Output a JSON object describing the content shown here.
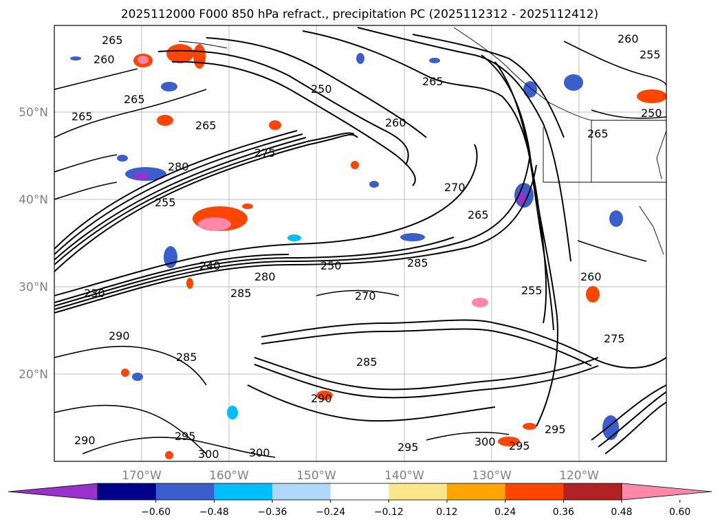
{
  "title": "2025112000 F000 850 hPa refract., precipitation PC (2025112312 - 2025112412)",
  "map": {
    "lon_labels": [
      "170°W",
      "160°W",
      "150°W",
      "140°W",
      "130°W",
      "120°W"
    ],
    "lat_labels": [
      "50°N",
      "40°N",
      "30°N",
      "20°N"
    ],
    "extent": {
      "lon_min": -180,
      "lon_max": -110,
      "lat_min": 10,
      "lat_max": 60
    }
  },
  "colorbar": {
    "ticks": [
      "−0.60",
      "−0.48",
      "−0.36",
      "−0.24",
      "−0.12",
      "0.12",
      "0.24",
      "0.36",
      "0.48",
      "0.60"
    ],
    "colors": [
      "#9932cc",
      "#00008b",
      "#3a5fcd",
      "#00bfff",
      "#add8f7",
      "#ffffff",
      "#fce68a",
      "#ffa500",
      "#ff4500",
      "#b22222",
      "#ff88aa"
    ]
  },
  "contour_labels": [
    {
      "text": "265"
    },
    {
      "text": "260"
    },
    {
      "text": "265"
    },
    {
      "text": "265"
    },
    {
      "text": "265"
    },
    {
      "text": "250"
    },
    {
      "text": "265"
    },
    {
      "text": "260"
    },
    {
      "text": "255"
    },
    {
      "text": "250"
    },
    {
      "text": "260"
    },
    {
      "text": "265"
    },
    {
      "text": "280"
    },
    {
      "text": "275"
    },
    {
      "text": "270"
    },
    {
      "text": "265"
    },
    {
      "text": "255"
    },
    {
      "text": "240"
    },
    {
      "text": "250"
    },
    {
      "text": "230"
    },
    {
      "text": "280"
    },
    {
      "text": "285"
    },
    {
      "text": "270"
    },
    {
      "text": "285"
    },
    {
      "text": "255"
    },
    {
      "text": "290"
    },
    {
      "text": "285"
    },
    {
      "text": "285"
    },
    {
      "text": "290"
    },
    {
      "text": "295"
    },
    {
      "text": "300"
    },
    {
      "text": "300"
    },
    {
      "text": "295"
    },
    {
      "text": "300"
    },
    {
      "text": "295"
    },
    {
      "text": "295"
    },
    {
      "text": "275"
    },
    {
      "text": "290"
    },
    {
      "text": "260"
    }
  ]
}
